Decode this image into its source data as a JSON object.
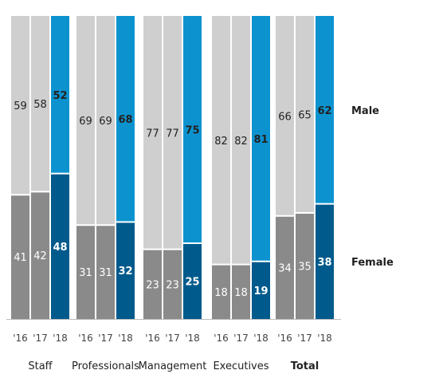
{
  "chart_data": {
    "type": "bar",
    "stacked": true,
    "percent_stacked": true,
    "groups": [
      {
        "name": "Staff",
        "bold": false,
        "bars": [
          {
            "year": "'16",
            "female": 41,
            "male": 59
          },
          {
            "year": "'17",
            "female": 42,
            "male": 58
          },
          {
            "year": "'18",
            "female": 48,
            "male": 52
          }
        ]
      },
      {
        "name": "Professionals",
        "bold": false,
        "bars": [
          {
            "year": "'16",
            "female": 31,
            "male": 69
          },
          {
            "year": "'17",
            "female": 31,
            "male": 69
          },
          {
            "year": "'18",
            "female": 32,
            "male": 68
          }
        ]
      },
      {
        "name": "Management",
        "bold": false,
        "bars": [
          {
            "year": "'16",
            "female": 23,
            "male": 77
          },
          {
            "year": "'17",
            "female": 23,
            "male": 77
          },
          {
            "year": "'18",
            "female": 25,
            "male": 75
          }
        ]
      },
      {
        "name": "Executives",
        "bold": false,
        "bars": [
          {
            "year": "'16",
            "female": 18,
            "male": 82
          },
          {
            "year": "'17",
            "female": 18,
            "male": 82
          },
          {
            "year": "'18",
            "female": 19,
            "male": 81
          }
        ]
      },
      {
        "name": "Total",
        "bold": true,
        "bars": [
          {
            "year": "'16",
            "female": 34,
            "male": 66
          },
          {
            "year": "'17",
            "female": 35,
            "male": 65
          },
          {
            "year": "'18",
            "female": 38,
            "male": 62
          }
        ]
      }
    ],
    "series": [
      {
        "name": "Female",
        "key": "female"
      },
      {
        "name": "Male",
        "key": "male"
      }
    ],
    "ylim": [
      0,
      100
    ],
    "grid": false,
    "legend_position": "right",
    "colors": {
      "female_past": "#8a8a8a",
      "male_past": "#cfcfcf",
      "female_latest": "#005a8c",
      "male_latest": "#0c93cf",
      "baseline": "#bbbbbb"
    }
  }
}
